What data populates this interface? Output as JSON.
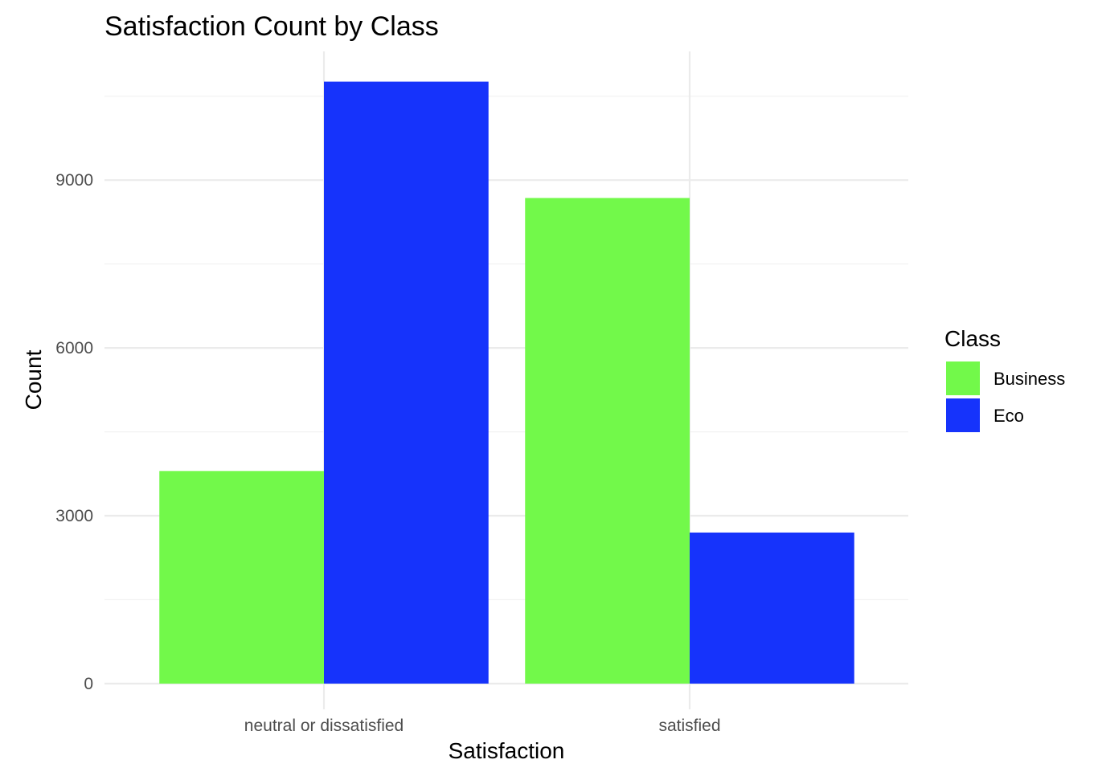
{
  "chart_data": {
    "type": "bar",
    "title": "Satisfaction Count by Class",
    "xlabel": "Satisfaction",
    "ylabel": "Count",
    "categories": [
      "neutral or dissatisfied",
      "satisfied"
    ],
    "series": [
      {
        "name": "Business",
        "color": "#72f94a",
        "values": [
          3800,
          8680
        ]
      },
      {
        "name": "Eco",
        "color": "#1633fb",
        "values": [
          10760,
          2700
        ]
      }
    ],
    "yticks": [
      0,
      3000,
      6000,
      9000
    ],
    "ylim": [
      -460,
      11300
    ],
    "grid": true,
    "legend": {
      "title": "Class",
      "position": "right"
    }
  }
}
